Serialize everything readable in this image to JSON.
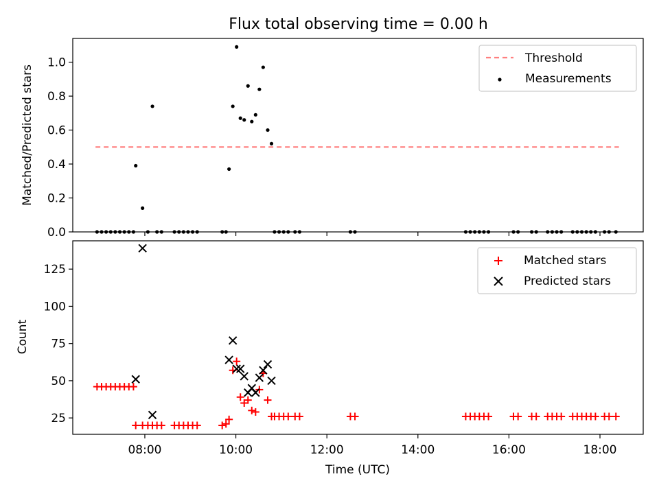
{
  "chart_data": [
    {
      "type": "scatter",
      "title": "Flux total observing time = 0.00 h",
      "xlabel": "",
      "ylabel": "Matched/Predicted stars",
      "xlim": [
        "06:25",
        "18:57"
      ],
      "ylim": [
        0,
        1.14
      ],
      "yticks": [
        "0.0",
        "0.2",
        "0.4",
        "0.6",
        "0.8",
        "1.0"
      ],
      "y_tick_values": [
        0.0,
        0.2,
        0.4,
        0.6,
        0.8,
        1.0
      ],
      "x_tick_values": [
        "08:00",
        "10:00",
        "12:00",
        "14:00",
        "16:00",
        "18:00"
      ],
      "legend": {
        "placement": "top-right",
        "entries": [
          "Threshold",
          "Measurements"
        ]
      },
      "threshold": {
        "name": "Threshold",
        "value": 0.5,
        "x_start": "06:55",
        "x_end": "18:25",
        "color": "#ff7f7f"
      },
      "series": [
        {
          "name": "Measurements",
          "color": "#000000",
          "points": [
            [
              "06:57",
              0.0
            ],
            [
              "07:03",
              0.0
            ],
            [
              "07:09",
              0.0
            ],
            [
              "07:15",
              0.0
            ],
            [
              "07:21",
              0.0
            ],
            [
              "07:27",
              0.0
            ],
            [
              "07:33",
              0.0
            ],
            [
              "07:39",
              0.0
            ],
            [
              "07:45",
              0.0
            ],
            [
              "07:48",
              0.39
            ],
            [
              "07:57",
              0.14
            ],
            [
              "08:04",
              0.0
            ],
            [
              "08:10",
              0.74
            ],
            [
              "08:16",
              0.0
            ],
            [
              "08:22",
              0.0
            ],
            [
              "08:39",
              0.0
            ],
            [
              "08:45",
              0.0
            ],
            [
              "08:51",
              0.0
            ],
            [
              "08:57",
              0.0
            ],
            [
              "09:03",
              0.0
            ],
            [
              "09:09",
              0.0
            ],
            [
              "09:42",
              0.0
            ],
            [
              "09:47",
              0.0
            ],
            [
              "09:51",
              0.37
            ],
            [
              "09:56",
              0.74
            ],
            [
              "10:01",
              1.09
            ],
            [
              "10:06",
              0.67
            ],
            [
              "10:11",
              0.66
            ],
            [
              "10:16",
              0.86
            ],
            [
              "10:21",
              0.65
            ],
            [
              "10:26",
              0.69
            ],
            [
              "10:31",
              0.84
            ],
            [
              "10:36",
              0.97
            ],
            [
              "10:42",
              0.6
            ],
            [
              "10:47",
              0.52
            ],
            [
              "10:51",
              0.0
            ],
            [
              "10:57",
              0.0
            ],
            [
              "11:03",
              0.0
            ],
            [
              "11:09",
              0.0
            ],
            [
              "11:18",
              0.0
            ],
            [
              "11:24",
              0.0
            ],
            [
              "12:31",
              0.0
            ],
            [
              "12:37",
              0.0
            ],
            [
              "15:03",
              0.0
            ],
            [
              "15:09",
              0.0
            ],
            [
              "15:15",
              0.0
            ],
            [
              "15:21",
              0.0
            ],
            [
              "15:27",
              0.0
            ],
            [
              "15:33",
              0.0
            ],
            [
              "16:06",
              0.0
            ],
            [
              "16:12",
              0.0
            ],
            [
              "16:30",
              0.0
            ],
            [
              "16:36",
              0.0
            ],
            [
              "16:51",
              0.0
            ],
            [
              "16:57",
              0.0
            ],
            [
              "17:03",
              0.0
            ],
            [
              "17:09",
              0.0
            ],
            [
              "17:24",
              0.0
            ],
            [
              "17:30",
              0.0
            ],
            [
              "17:36",
              0.0
            ],
            [
              "17:42",
              0.0
            ],
            [
              "17:48",
              0.0
            ],
            [
              "17:54",
              0.0
            ],
            [
              "18:06",
              0.0
            ],
            [
              "18:12",
              0.0
            ],
            [
              "18:21",
              0.0
            ]
          ]
        }
      ]
    },
    {
      "type": "scatter",
      "title": "",
      "xlabel": "Time (UTC)",
      "ylabel": "Count",
      "xlim": [
        "06:25",
        "18:57"
      ],
      "ylim": [
        14,
        144
      ],
      "yticks": [
        "25",
        "50",
        "75",
        "100",
        "125"
      ],
      "y_tick_values": [
        25,
        50,
        75,
        100,
        125
      ],
      "xticks": [
        "08:00",
        "10:00",
        "12:00",
        "14:00",
        "16:00",
        "18:00"
      ],
      "x_tick_values": [
        "08:00",
        "10:00",
        "12:00",
        "14:00",
        "16:00",
        "18:00"
      ],
      "legend": {
        "placement": "top-right",
        "entries": [
          "Matched stars",
          "Predicted stars"
        ]
      },
      "series": [
        {
          "name": "Matched stars",
          "marker": "plus",
          "color": "#ff0000",
          "points": [
            [
              "06:57",
              46
            ],
            [
              "07:03",
              46
            ],
            [
              "07:09",
              46
            ],
            [
              "07:15",
              46
            ],
            [
              "07:21",
              46
            ],
            [
              "07:27",
              46
            ],
            [
              "07:33",
              46
            ],
            [
              "07:39",
              46
            ],
            [
              "07:45",
              46
            ],
            [
              "07:48",
              20
            ],
            [
              "07:57",
              20
            ],
            [
              "08:04",
              20
            ],
            [
              "08:10",
              20
            ],
            [
              "08:16",
              20
            ],
            [
              "08:22",
              20
            ],
            [
              "08:39",
              20
            ],
            [
              "08:45",
              20
            ],
            [
              "08:51",
              20
            ],
            [
              "08:57",
              20
            ],
            [
              "09:03",
              20
            ],
            [
              "09:09",
              20
            ],
            [
              "09:42",
              20
            ],
            [
              "09:47",
              21
            ],
            [
              "09:51",
              24
            ],
            [
              "09:56",
              57
            ],
            [
              "10:01",
              63
            ],
            [
              "10:06",
              39
            ],
            [
              "10:11",
              35
            ],
            [
              "10:16",
              37
            ],
            [
              "10:21",
              30
            ],
            [
              "10:26",
              29
            ],
            [
              "10:31",
              44
            ],
            [
              "10:36",
              55
            ],
            [
              "10:42",
              37
            ],
            [
              "10:47",
              26
            ],
            [
              "10:51",
              26
            ],
            [
              "10:57",
              26
            ],
            [
              "11:03",
              26
            ],
            [
              "11:09",
              26
            ],
            [
              "11:18",
              26
            ],
            [
              "11:24",
              26
            ],
            [
              "12:31",
              26
            ],
            [
              "12:37",
              26
            ],
            [
              "15:03",
              26
            ],
            [
              "15:09",
              26
            ],
            [
              "15:15",
              26
            ],
            [
              "15:21",
              26
            ],
            [
              "15:27",
              26
            ],
            [
              "15:33",
              26
            ],
            [
              "16:06",
              26
            ],
            [
              "16:12",
              26
            ],
            [
              "16:30",
              26
            ],
            [
              "16:36",
              26
            ],
            [
              "16:51",
              26
            ],
            [
              "16:57",
              26
            ],
            [
              "17:03",
              26
            ],
            [
              "17:09",
              26
            ],
            [
              "17:24",
              26
            ],
            [
              "17:30",
              26
            ],
            [
              "17:36",
              26
            ],
            [
              "17:42",
              26
            ],
            [
              "17:48",
              26
            ],
            [
              "17:54",
              26
            ],
            [
              "18:06",
              26
            ],
            [
              "18:12",
              26
            ],
            [
              "18:21",
              26
            ]
          ]
        },
        {
          "name": "Predicted stars",
          "marker": "x",
          "color": "#000000",
          "points": [
            [
              "07:48",
              51
            ],
            [
              "07:57",
              139
            ],
            [
              "08:10",
              27
            ],
            [
              "09:51",
              64
            ],
            [
              "09:56",
              77
            ],
            [
              "10:01",
              58
            ],
            [
              "10:06",
              58
            ],
            [
              "10:11",
              53
            ],
            [
              "10:16",
              42
            ],
            [
              "10:21",
              45
            ],
            [
              "10:26",
              42
            ],
            [
              "10:31",
              52
            ],
            [
              "10:36",
              57
            ],
            [
              "10:42",
              61
            ],
            [
              "10:47",
              50
            ]
          ]
        }
      ]
    }
  ]
}
